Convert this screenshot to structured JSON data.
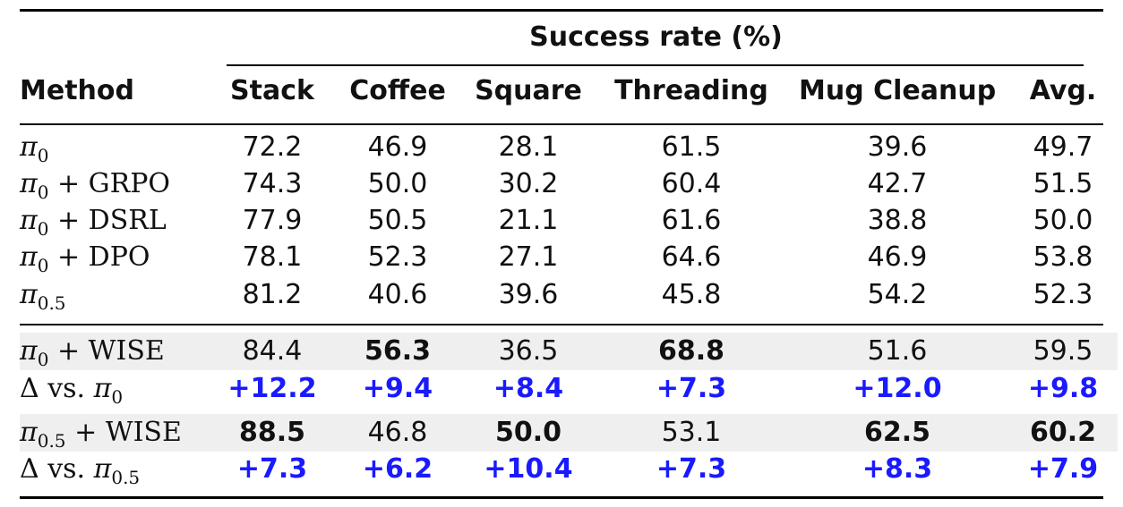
{
  "table": {
    "group_header": "Success rate (%)",
    "method_header": "Method",
    "columns": [
      "Stack",
      "Coffee",
      "Square",
      "Threading",
      "Mug Cleanup",
      "Avg."
    ],
    "baseline_rows": [
      {
        "pi": "π",
        "sub": "0",
        "suffix": "",
        "values": [
          "72.2",
          "46.9",
          "28.1",
          "61.5",
          "39.6",
          "49.7"
        ]
      },
      {
        "pi": "π",
        "sub": "0",
        "suffix": " + GRPO",
        "values": [
          "74.3",
          "50.0",
          "30.2",
          "60.4",
          "42.7",
          "51.5"
        ]
      },
      {
        "pi": "π",
        "sub": "0",
        "suffix": " + DSRL",
        "values": [
          "77.9",
          "50.5",
          "21.1",
          "61.6",
          "38.8",
          "50.0"
        ]
      },
      {
        "pi": "π",
        "sub": "0",
        "suffix": " + DPO",
        "values": [
          "78.1",
          "52.3",
          "27.1",
          "64.6",
          "46.9",
          "53.8"
        ]
      },
      {
        "pi": "π",
        "sub": "0.5",
        "suffix": "",
        "values": [
          "81.2",
          "40.6",
          "39.6",
          "45.8",
          "54.2",
          "52.3"
        ]
      }
    ],
    "wise_rows": [
      {
        "pi": "π",
        "sub": "0",
        "suffix": " + WISE",
        "values": [
          "84.4",
          "56.3",
          "36.5",
          "68.8",
          "51.6",
          "59.5"
        ],
        "bold": [
          false,
          true,
          false,
          true,
          false,
          false
        ],
        "delta_prefix": "Δ vs. ",
        "delta_values": [
          "+12.2",
          "+9.4",
          "+8.4",
          "+7.3",
          "+12.0",
          "+9.8"
        ]
      },
      {
        "pi": "π",
        "sub": "0.5",
        "suffix": " + WISE",
        "values": [
          "88.5",
          "46.8",
          "50.0",
          "53.1",
          "62.5",
          "60.2"
        ],
        "bold": [
          true,
          false,
          true,
          false,
          true,
          true
        ],
        "delta_prefix": "Δ vs. ",
        "delta_values": [
          "+7.3",
          "+6.2",
          "+10.4",
          "+7.3",
          "+8.3",
          "+7.9"
        ]
      }
    ],
    "colors": {
      "delta": "#1a1aff",
      "highlight_band": "#efefef"
    }
  }
}
